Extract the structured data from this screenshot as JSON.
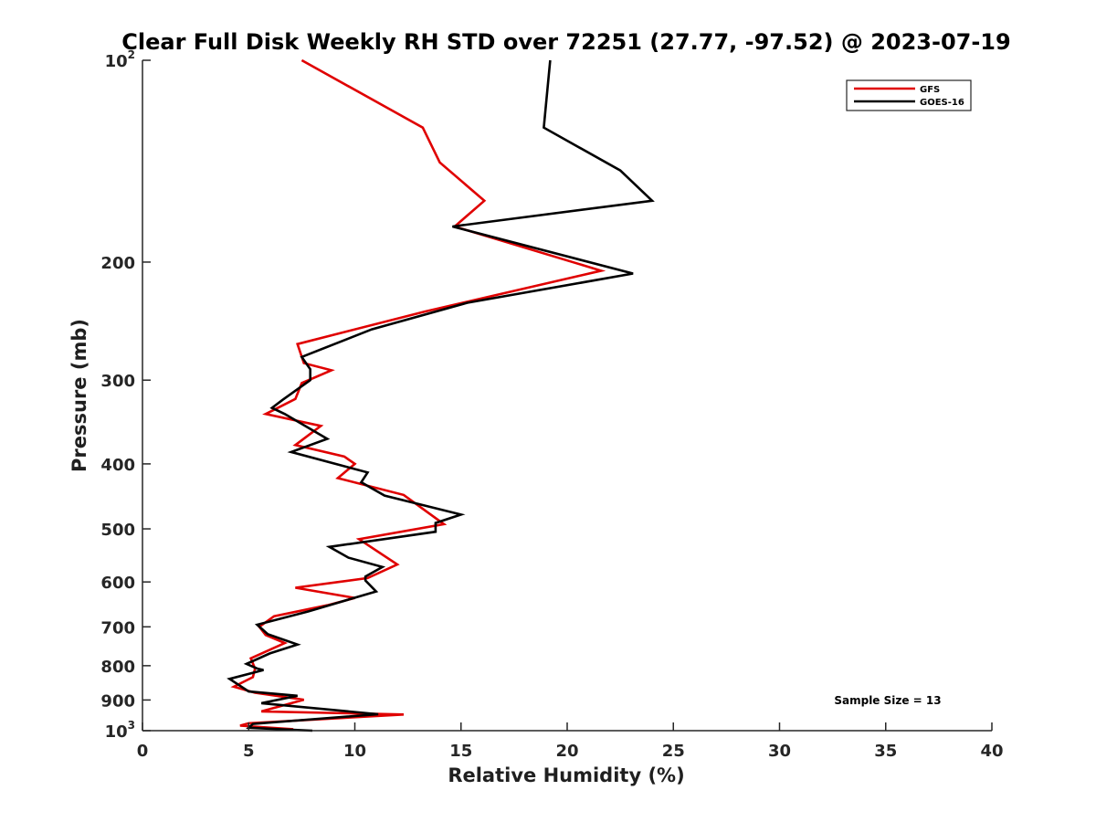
{
  "chart_data": {
    "type": "line",
    "title": "Clear Full Disk Weekly RH STD over 72251 (27.77, -97.52) @ 2023-07-19",
    "xlabel": "Relative Humidity (%)",
    "ylabel": "Pressure (mb)",
    "xlim": [
      0,
      40
    ],
    "ylim": [
      100,
      1000
    ],
    "y_scale": "log",
    "y_reversed": true,
    "x_ticks": [
      "0",
      "5",
      "10",
      "15",
      "20",
      "25",
      "30",
      "35",
      "40"
    ],
    "y_ticks": [
      {
        "value": 100,
        "base": "10",
        "exp": "2"
      },
      {
        "value": 200,
        "label": "200"
      },
      {
        "value": 300,
        "label": "300"
      },
      {
        "value": 400,
        "label": "400"
      },
      {
        "value": 500,
        "label": "500"
      },
      {
        "value": 600,
        "label": "600"
      },
      {
        "value": 700,
        "label": "700"
      },
      {
        "value": 800,
        "label": "800"
      },
      {
        "value": 900,
        "label": "900"
      },
      {
        "value": 1000,
        "base": "10",
        "exp": "3"
      }
    ],
    "grid": false,
    "legend_position": "top-right",
    "series": [
      {
        "name": "GFS",
        "color": "#e00000",
        "x": [
          7.5,
          13.2,
          14.0,
          16.1,
          14.7,
          21.6,
          13.3,
          7.3,
          7.6,
          8.9,
          7.5,
          7.2,
          5.8,
          8.4,
          7.2,
          9.5,
          10.0,
          9.2,
          12.3,
          14.2,
          10.2,
          12.0,
          10.6,
          7.2,
          10.0,
          8.7,
          6.2,
          5.5,
          5.8,
          6.7,
          5.1,
          5.3,
          5.2,
          4.3,
          5.3,
          7.6,
          5.6,
          12.3,
          5.0,
          4.6,
          7.1
        ],
        "y": [
          100,
          126,
          142,
          162,
          177,
          206,
          237,
          265,
          283,
          290,
          303,
          320,
          337,
          351,
          375,
          390,
          400,
          420,
          445,
          492,
          518,
          565,
          592,
          612,
          634,
          650,
          675,
          700,
          720,
          740,
          780,
          808,
          832,
          860,
          878,
          899,
          936,
          946,
          975,
          983,
          995
        ]
      },
      {
        "name": "GOES-16",
        "color": "#000000",
        "x": [
          19.2,
          18.9,
          22.5,
          24.0,
          14.6,
          23.1,
          15.3,
          10.8,
          7.5,
          7.9,
          7.9,
          6.6,
          6.1,
          6.7,
          8.7,
          7.0,
          10.6,
          10.3,
          11.4,
          15.0,
          13.8,
          13.8,
          8.8,
          9.7,
          11.3,
          10.5,
          10.5,
          11.0,
          7.8,
          5.4,
          5.9,
          7.3,
          6.0,
          4.9,
          5.4,
          5.7,
          4.1,
          5.0,
          7.3,
          5.6,
          11.1,
          5.2,
          5.0,
          8.0
        ],
        "y": [
          100,
          126,
          146,
          162,
          177,
          208,
          230,
          252,
          277,
          289,
          300,
          321,
          330,
          337,
          367,
          384,
          412,
          426,
          446,
          476,
          490,
          505,
          532,
          552,
          570,
          589,
          597,
          620,
          664,
          695,
          718,
          744,
          767,
          795,
          808,
          812,
          837,
          874,
          887,
          910,
          945,
          977,
          990,
          1000
        ]
      }
    ],
    "annotations": [
      {
        "text": "Sample Size = 13"
      }
    ]
  }
}
